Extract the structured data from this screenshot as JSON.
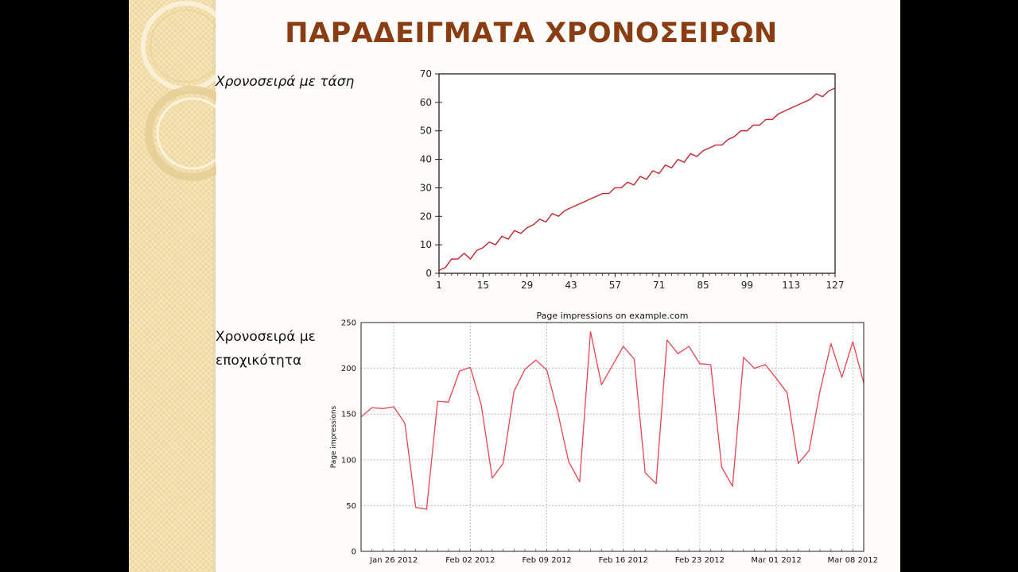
{
  "slide": {
    "title": "ΠΑΡΑΔΕΙΓΜΑΤΑ ΧΡΟΝΟΣΕΙΡΩΝ",
    "trend_label": "Χρονοσειρά με τάση",
    "seasonal_label_line1": "Χρονοσειρά με",
    "seasonal_label_line2": "εποχικότητα"
  },
  "colors": {
    "title": "#8a3c12",
    "trend_line": "#c0262d",
    "seasonal_line": "#e8454f"
  },
  "chart_data": [
    {
      "type": "line",
      "title": "",
      "xlabel": "",
      "ylabel": "",
      "xlim": [
        1,
        127
      ],
      "ylim": [
        0,
        70
      ],
      "x_ticks": [
        1,
        15,
        29,
        43,
        57,
        71,
        85,
        99,
        113,
        127
      ],
      "y_ticks": [
        0,
        10,
        20,
        30,
        40,
        50,
        60,
        70
      ],
      "grid": false,
      "series": [
        {
          "x": [
            1,
            3,
            5,
            7,
            9,
            11,
            13,
            15,
            17,
            19,
            21,
            23,
            25,
            27,
            29,
            31,
            33,
            35,
            37,
            39,
            41,
            43,
            45,
            47,
            49,
            51,
            53,
            55,
            57,
            59,
            61,
            63,
            65,
            67,
            69,
            71,
            73,
            75,
            77,
            79,
            81,
            83,
            85,
            87,
            89,
            91,
            93,
            95,
            97,
            99,
            101,
            103,
            105,
            107,
            109,
            111,
            113,
            115,
            117,
            119,
            121,
            123,
            125,
            127
          ],
          "values": [
            1,
            2,
            5,
            5,
            7,
            5,
            8,
            9,
            11,
            10,
            13,
            12,
            15,
            14,
            16,
            17,
            19,
            18,
            21,
            20,
            22,
            23,
            24,
            25,
            26,
            27,
            28,
            28,
            30,
            30,
            32,
            31,
            34,
            33,
            36,
            35,
            38,
            37,
            40,
            39,
            42,
            41,
            43,
            44,
            45,
            45,
            47,
            48,
            50,
            50,
            52,
            52,
            54,
            54,
            56,
            57,
            58,
            59,
            60,
            61,
            63,
            62,
            64,
            65
          ]
        }
      ]
    },
    {
      "type": "line",
      "title": "Page impressions on example.com",
      "xlabel": "",
      "ylabel": "Page impressions",
      "ylim": [
        0,
        250
      ],
      "y_ticks": [
        0,
        50,
        100,
        150,
        200,
        250
      ],
      "x_tick_labels": [
        "Jan 26 2012",
        "Feb 02 2012",
        "Feb 09 2012",
        "Feb 16 2012",
        "Feb 23 2012",
        "Mar 01 2012",
        "Mar 08 2012"
      ],
      "grid": true,
      "series": [
        {
          "x": [
            "Jan 23 2012",
            "Jan 24 2012",
            "Jan 25 2012",
            "Jan 26 2012",
            "Jan 27 2012",
            "Jan 28 2012",
            "Jan 29 2012",
            "Jan 30 2012",
            "Jan 31 2012",
            "Feb 01 2012",
            "Feb 02 2012",
            "Feb 03 2012",
            "Feb 04 2012",
            "Feb 05 2012",
            "Feb 06 2012",
            "Feb 07 2012",
            "Feb 08 2012",
            "Feb 09 2012",
            "Feb 10 2012",
            "Feb 11 2012",
            "Feb 12 2012",
            "Feb 13 2012",
            "Feb 14 2012",
            "Feb 15 2012",
            "Feb 16 2012",
            "Feb 17 2012",
            "Feb 18 2012",
            "Feb 19 2012",
            "Feb 20 2012",
            "Feb 21 2012",
            "Feb 22 2012",
            "Feb 23 2012",
            "Feb 24 2012",
            "Feb 25 2012",
            "Feb 26 2012",
            "Feb 27 2012",
            "Feb 28 2012",
            "Feb 29 2012",
            "Mar 01 2012",
            "Mar 02 2012",
            "Mar 03 2012",
            "Mar 04 2012",
            "Mar 05 2012",
            "Mar 06 2012",
            "Mar 07 2012",
            "Mar 08 2012",
            "Mar 09 2012"
          ],
          "values": [
            147,
            157,
            156,
            158,
            140,
            48,
            46,
            164,
            163,
            197,
            201,
            160,
            80,
            96,
            175,
            199,
            209,
            198,
            152,
            98,
            76,
            240,
            182,
            203,
            224,
            210,
            86,
            74,
            231,
            216,
            224,
            205,
            204,
            92,
            71,
            212,
            200,
            204,
            189,
            173,
            96,
            110,
            175,
            227,
            190,
            229,
            184
          ]
        }
      ]
    }
  ]
}
